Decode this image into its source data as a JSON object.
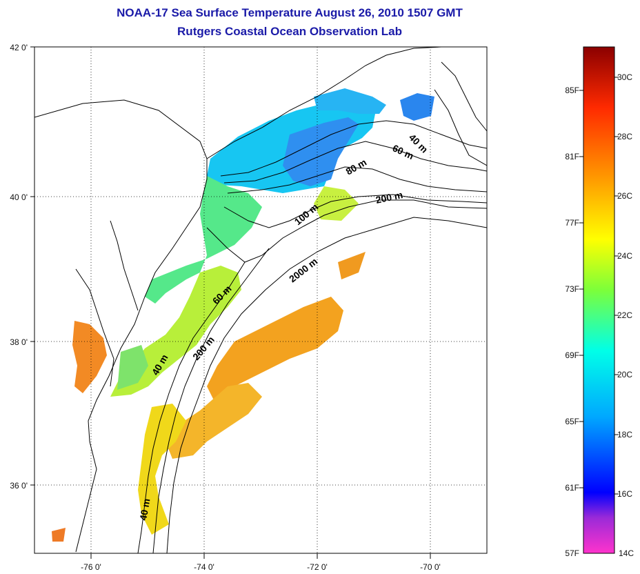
{
  "title": {
    "line1": "NOAA-17 Sea Surface Temperature August 26, 2010 1507 GMT",
    "line2": "Rutgers Coastal Ocean Observation Lab"
  },
  "map": {
    "lon_ticks": [
      "-76 0'",
      "-74 0'",
      "-72 0'",
      "-70 0'"
    ],
    "lat_ticks": [
      "42 0'",
      "40 0'",
      "38 0'",
      "36 0'"
    ],
    "contour_labels": [
      "40 m",
      "60 m",
      "80 m",
      "200 m",
      "100 m",
      "2000 m",
      "60 m",
      "200 m",
      "40 m",
      "40 m"
    ]
  },
  "colorbar": {
    "fahrenheit": [
      "85F",
      "81F",
      "77F",
      "73F",
      "69F",
      "65F",
      "61F",
      "57F"
    ],
    "celsius": [
      "30C",
      "28C",
      "26C",
      "24C",
      "22C",
      "20C",
      "18C",
      "16C",
      "14C"
    ],
    "colors": [
      "#ff33cc",
      "#7a2ad8",
      "#0000ff",
      "#00a8ff",
      "#00ffe8",
      "#7cff3a",
      "#ffff00",
      "#ff9a00",
      "#ff2a00",
      "#8b0000"
    ]
  }
}
